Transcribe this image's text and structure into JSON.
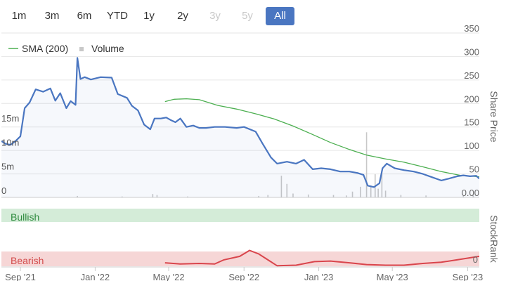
{
  "range_buttons": [
    {
      "label": "1m",
      "state": "enabled"
    },
    {
      "label": "3m",
      "state": "enabled"
    },
    {
      "label": "6m",
      "state": "enabled"
    },
    {
      "label": "YTD",
      "state": "enabled"
    },
    {
      "label": "1y",
      "state": "enabled"
    },
    {
      "label": "2y",
      "state": "enabled"
    },
    {
      "label": "3y",
      "state": "disabled"
    },
    {
      "label": "5y",
      "state": "disabled"
    },
    {
      "label": "All",
      "state": "active"
    }
  ],
  "colors": {
    "price_line": "#4a76c1",
    "sma_line": "#4caf50",
    "volume_bar": "#c8c8c8",
    "bullish_band": "#d4ecd8",
    "bearish_band": "#f6d6d6",
    "stockrank_line": "#d9454c",
    "bullish_text": "#2e8b3e",
    "bearish_text": "#d24a4a"
  },
  "chart_data": {
    "type": "line",
    "legend": [
      {
        "name": "SMA (200)",
        "icon": "line-swatch-icon"
      },
      {
        "name": "Volume",
        "icon": "square-swatch-icon"
      }
    ],
    "legend_position": "top-left",
    "x_axis": {
      "ticks": [
        "Sep '21",
        "Jan '22",
        "May '22",
        "Sep '22",
        "Jan '23",
        "May '23",
        "Sep '23"
      ],
      "range": [
        "2021-08-01",
        "2023-09-20"
      ]
    },
    "y_axis_right": {
      "label": "Share Price",
      "ticks": [
        "0.00",
        "50",
        "100",
        "150",
        "200",
        "250",
        "300",
        "350"
      ],
      "range": [
        0,
        350
      ]
    },
    "y_axis_volume": {
      "ticks": [
        "0",
        "5m",
        "10m",
        "15m"
      ],
      "range": [
        0,
        15000000
      ]
    },
    "stockrank": {
      "label": "StockRank",
      "bullish_label": "Bullish",
      "bearish_label": "Bearish",
      "tick": "0",
      "range": [
        0,
        100
      ]
    },
    "gridlines": "horizontal",
    "series": [
      {
        "name": "Price",
        "points": [
          [
            "2021-08-01",
            120
          ],
          [
            "2021-08-08",
            114
          ],
          [
            "2021-08-16",
            112
          ],
          [
            "2021-08-24",
            120
          ],
          [
            "2021-09-01",
            130
          ],
          [
            "2021-09-08",
            190
          ],
          [
            "2021-09-16",
            202
          ],
          [
            "2021-09-26",
            230
          ],
          [
            "2021-10-08",
            225
          ],
          [
            "2021-10-20",
            232
          ],
          [
            "2021-10-28",
            206
          ],
          [
            "2021-11-05",
            222
          ],
          [
            "2021-11-15",
            190
          ],
          [
            "2021-11-22",
            205
          ],
          [
            "2021-11-30",
            197
          ],
          [
            "2021-12-03",
            297
          ],
          [
            "2021-12-08",
            252
          ],
          [
            "2021-12-15",
            256
          ],
          [
            "2021-12-25",
            251
          ],
          [
            "2022-01-10",
            256
          ],
          [
            "2022-01-28",
            255
          ],
          [
            "2022-02-07",
            220
          ],
          [
            "2022-02-22",
            212
          ],
          [
            "2022-03-02",
            195
          ],
          [
            "2022-03-12",
            185
          ],
          [
            "2022-03-22",
            155
          ],
          [
            "2022-04-01",
            145
          ],
          [
            "2022-04-08",
            168
          ],
          [
            "2022-04-18",
            168
          ],
          [
            "2022-04-27",
            170
          ],
          [
            "2022-05-04",
            165
          ],
          [
            "2022-05-12",
            160
          ],
          [
            "2022-05-20",
            168
          ],
          [
            "2022-05-30",
            150
          ],
          [
            "2022-06-10",
            153
          ],
          [
            "2022-06-20",
            148
          ],
          [
            "2022-07-01",
            148
          ],
          [
            "2022-07-15",
            150
          ],
          [
            "2022-08-01",
            150
          ],
          [
            "2022-08-20",
            148
          ],
          [
            "2022-09-01",
            150
          ],
          [
            "2022-09-20",
            140
          ],
          [
            "2022-10-01",
            115
          ],
          [
            "2022-10-15",
            85
          ],
          [
            "2022-10-25",
            72
          ],
          [
            "2022-11-10",
            76
          ],
          [
            "2022-11-25",
            72
          ],
          [
            "2022-12-08",
            80
          ],
          [
            "2022-12-22",
            60
          ],
          [
            "2023-01-05",
            62
          ],
          [
            "2023-01-20",
            60
          ],
          [
            "2023-02-05",
            55
          ],
          [
            "2023-02-20",
            55
          ],
          [
            "2023-03-05",
            52
          ],
          [
            "2023-03-15",
            48
          ],
          [
            "2023-03-22",
            25
          ],
          [
            "2023-04-01",
            22
          ],
          [
            "2023-04-10",
            30
          ],
          [
            "2023-04-15",
            62
          ],
          [
            "2023-04-22",
            72
          ],
          [
            "2023-05-05",
            62
          ],
          [
            "2023-05-20",
            58
          ],
          [
            "2023-06-05",
            55
          ],
          [
            "2023-06-20",
            50
          ],
          [
            "2023-07-05",
            43
          ],
          [
            "2023-07-20",
            36
          ],
          [
            "2023-08-01",
            40
          ],
          [
            "2023-08-15",
            45
          ],
          [
            "2023-08-25",
            47
          ],
          [
            "2023-09-05",
            45
          ],
          [
            "2023-09-15",
            46
          ],
          [
            "2023-09-20",
            40
          ]
        ]
      },
      {
        "name": "SMA (200)",
        "points": [
          [
            "2022-04-25",
            204
          ],
          [
            "2022-05-10",
            209
          ],
          [
            "2022-05-30",
            210
          ],
          [
            "2022-06-20",
            208
          ],
          [
            "2022-07-20",
            196
          ],
          [
            "2022-08-20",
            188
          ],
          [
            "2022-09-20",
            178
          ],
          [
            "2022-10-20",
            167
          ],
          [
            "2022-11-20",
            152
          ],
          [
            "2022-12-20",
            135
          ],
          [
            "2023-01-20",
            117
          ],
          [
            "2023-02-20",
            102
          ],
          [
            "2023-03-20",
            90
          ],
          [
            "2023-04-20",
            82
          ],
          [
            "2023-05-20",
            75
          ],
          [
            "2023-06-20",
            65
          ],
          [
            "2023-07-20",
            55
          ],
          [
            "2023-08-20",
            47
          ],
          [
            "2023-09-20",
            44
          ]
        ]
      },
      {
        "name": "Volume",
        "points": [
          [
            "2021-12-03",
            300000
          ],
          [
            "2022-02-14",
            200000
          ],
          [
            "2022-04-05",
            700000
          ],
          [
            "2022-04-12",
            500000
          ],
          [
            "2022-06-01",
            200000
          ],
          [
            "2022-09-25",
            300000
          ],
          [
            "2022-10-10",
            500000
          ],
          [
            "2022-11-01",
            4500000
          ],
          [
            "2022-11-10",
            2800000
          ],
          [
            "2022-11-20",
            800000
          ],
          [
            "2022-12-15",
            600000
          ],
          [
            "2023-01-25",
            500000
          ],
          [
            "2023-02-15",
            400000
          ],
          [
            "2023-02-25",
            1200000
          ],
          [
            "2023-03-10",
            2200000
          ],
          [
            "2023-03-20",
            13500000
          ],
          [
            "2023-03-27",
            2500000
          ],
          [
            "2023-04-03",
            4800000
          ],
          [
            "2023-04-08",
            1800000
          ],
          [
            "2023-04-14",
            5200000
          ],
          [
            "2023-04-20",
            1400000
          ],
          [
            "2023-05-15",
            500000
          ],
          [
            "2023-06-25",
            400000
          ],
          [
            "2023-08-25",
            300000
          ],
          [
            "2023-09-10",
            500000
          ]
        ]
      },
      {
        "name": "StockRank",
        "points": [
          [
            "2022-04-25",
            7
          ],
          [
            "2022-05-20",
            5
          ],
          [
            "2022-06-20",
            6
          ],
          [
            "2022-07-15",
            5
          ],
          [
            "2022-07-30",
            12
          ],
          [
            "2022-08-25",
            18
          ],
          [
            "2022-09-10",
            28
          ],
          [
            "2022-09-25",
            22
          ],
          [
            "2022-10-10",
            12
          ],
          [
            "2022-10-25",
            2
          ],
          [
            "2022-11-25",
            3
          ],
          [
            "2022-12-25",
            9
          ],
          [
            "2023-01-20",
            10
          ],
          [
            "2023-02-20",
            7
          ],
          [
            "2023-03-20",
            4
          ],
          [
            "2023-04-20",
            3
          ],
          [
            "2023-05-20",
            3
          ],
          [
            "2023-06-20",
            6
          ],
          [
            "2023-07-20",
            8
          ],
          [
            "2023-08-20",
            13
          ],
          [
            "2023-09-20",
            18
          ]
        ]
      }
    ]
  }
}
